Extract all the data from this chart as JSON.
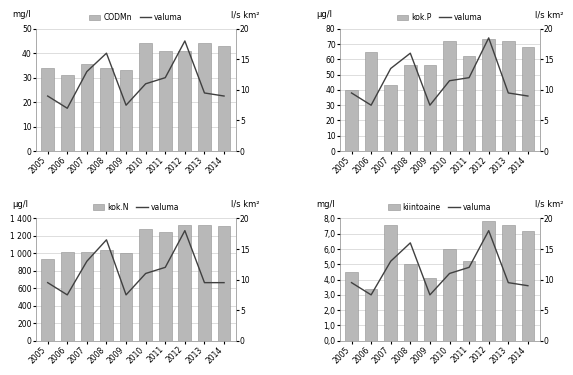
{
  "years": [
    "2005",
    "2006",
    "2007",
    "2008",
    "2009",
    "2010",
    "2011",
    "2012",
    "2013",
    "2014"
  ],
  "codmn": {
    "bars": [
      34,
      31,
      35.5,
      34,
      33,
      44,
      41,
      41,
      44,
      43
    ],
    "line": [
      9,
      7,
      13,
      16,
      7.5,
      11,
      12,
      18,
      9.5,
      9
    ],
    "ylabel_left": "mg/l",
    "ylabel_right": "l/s km²",
    "bar_label": "CODMn",
    "line_label": "valuma",
    "ylim_left": [
      0,
      50
    ],
    "ylim_right": [
      0,
      20
    ],
    "yticks_left": [
      0,
      10,
      20,
      30,
      40,
      50
    ],
    "yticks_right": [
      0,
      5,
      10,
      15,
      20
    ],
    "yticklabels_left": [
      "0",
      "10",
      "20",
      "30",
      "40",
      "50"
    ],
    "yticklabels_right": [
      "0",
      "5",
      "10",
      "15",
      "20"
    ]
  },
  "kokp": {
    "bars": [
      40,
      65,
      43,
      56,
      56,
      72,
      62,
      73,
      72,
      68
    ],
    "line": [
      9.5,
      7.5,
      13.5,
      16,
      7.5,
      11.5,
      12,
      18.5,
      9.5,
      9
    ],
    "ylabel_left": "μg/l",
    "ylabel_right": "l/s km²",
    "bar_label": "kok.P",
    "line_label": "valuma",
    "ylim_left": [
      0,
      80
    ],
    "ylim_right": [
      0,
      20
    ],
    "yticks_left": [
      0,
      10,
      20,
      30,
      40,
      50,
      60,
      70,
      80
    ],
    "yticks_right": [
      0,
      5,
      10,
      15,
      20
    ],
    "yticklabels_left": [
      "0",
      "10",
      "20",
      "30",
      "40",
      "50",
      "60",
      "70",
      "80"
    ],
    "yticklabels_right": [
      "0",
      "5",
      "10",
      "15",
      "20"
    ]
  },
  "kokn": {
    "bars": [
      930,
      1010,
      1020,
      1040,
      1000,
      1280,
      1250,
      1330,
      1330,
      1310
    ],
    "line": [
      9.5,
      7.5,
      13,
      16.5,
      7.5,
      11,
      12,
      18,
      9.5,
      9.5
    ],
    "ylabel_left": "μg/l",
    "ylabel_right": "l/s km²",
    "bar_label": "kok.N",
    "line_label": "valuma",
    "ylim_left": [
      0,
      1400
    ],
    "ylim_right": [
      0,
      20
    ],
    "yticks_left": [
      0,
      200,
      400,
      600,
      800,
      1000,
      1200,
      1400
    ],
    "yticks_right": [
      0,
      5,
      10,
      15,
      20
    ],
    "yticklabels_left": [
      "0",
      "200",
      "400",
      "600",
      "800",
      "1 000",
      "1 200",
      "1 400"
    ],
    "yticklabels_right": [
      "0",
      "5",
      "10",
      "15",
      "20"
    ]
  },
  "kiint": {
    "bars": [
      4.5,
      3.4,
      7.6,
      5.0,
      4.1,
      6.0,
      5.2,
      7.8,
      7.6,
      7.2
    ],
    "line": [
      9.5,
      7.5,
      13,
      16,
      7.5,
      11,
      12,
      18,
      9.5,
      9
    ],
    "ylabel_left": "mg/l",
    "ylabel_right": "l/s km²",
    "bar_label": "kiintoaine",
    "line_label": "valuma",
    "ylim_left": [
      0,
      8.0
    ],
    "ylim_right": [
      0,
      20
    ],
    "yticks_left": [
      0.0,
      1.0,
      2.0,
      3.0,
      4.0,
      5.0,
      6.0,
      7.0,
      8.0
    ],
    "yticks_right": [
      0,
      5,
      10,
      15,
      20
    ],
    "yticklabels_left": [
      "0,0",
      "1,0",
      "2,0",
      "3,0",
      "4,0",
      "5,0",
      "6,0",
      "7,0",
      "8,0"
    ],
    "yticklabels_right": [
      "0",
      "5",
      "10",
      "15",
      "20"
    ]
  },
  "bar_color": "#b8b8b8",
  "line_color": "#404040",
  "bar_edge_color": "#909090",
  "background_color": "#ffffff",
  "grid_color": "#d0d0d0"
}
